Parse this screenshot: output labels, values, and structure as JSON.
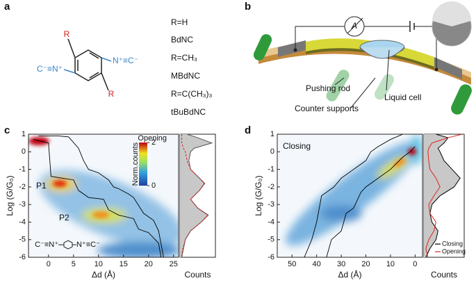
{
  "panel_letters": [
    "a",
    "b",
    "c",
    "d"
  ],
  "panel_a": {
    "left_group": "C⁻≡N⁺",
    "right_group": "N⁺≡C⁻",
    "substituent_top": "R",
    "substituent_bottom": "R",
    "labels": [
      "R=H",
      "BdNC",
      "R=CH₃",
      "MBdNC",
      "R=C(CH₃)₃",
      "tBuBdNC"
    ]
  },
  "panel_b": {
    "meter": "A",
    "pushing_rod": "Pushing rod",
    "liquid_cell": "Liquid cell",
    "counter_supports": "Counter supports"
  },
  "chart_data": [
    {
      "type": "heatmap",
      "xlabel": "Δd (Å)",
      "ylabel": "Log (G/G₀)",
      "xlim": [
        -4,
        26
      ],
      "ylim": [
        -6,
        1
      ],
      "xticks": [
        0,
        5,
        10,
        15,
        20,
        25
      ],
      "yticks": [
        -6,
        -5,
        -4,
        -3,
        -2,
        -1,
        0,
        1
      ],
      "colorbar": {
        "title": "Opening",
        "label": "Norm.counts",
        "ticks": [
          0,
          2
        ]
      },
      "annotations": [
        "P1",
        "P2",
        "C⁻≡N⁺",
        "N⁺≡C⁻"
      ],
      "traces": [
        {
          "color": "#000000",
          "x": [
            -2,
            2,
            4,
            6,
            7,
            8,
            10,
            12,
            13,
            14,
            16,
            17,
            19,
            20,
            21,
            22,
            23
          ],
          "y": [
            0.9,
            0.9,
            0.85,
            0.2,
            -0.5,
            -1,
            -1.2,
            -1.6,
            -2,
            -2.1,
            -2.4,
            -2.6,
            -3.5,
            -3.7,
            -3.9,
            -4.5,
            -6
          ]
        },
        {
          "color": "#000000",
          "x": [
            -3,
            0,
            0.5,
            5,
            6,
            8,
            11,
            12,
            14,
            17,
            18,
            20,
            22,
            22.5
          ],
          "y": [
            0.7,
            0.5,
            -1.4,
            -1.6,
            -2.2,
            -2.6,
            -2.7,
            -3.3,
            -3.6,
            -3.8,
            -4.4,
            -4.6,
            -5.2,
            -6
          ]
        }
      ],
      "histogram": {
        "xlabel": "Counts",
        "xlim": [
          0,
          1
        ],
        "levels": [
          1,
          0.8,
          0.5,
          0.2,
          0,
          -0.5,
          -1,
          -1.5,
          -1.8,
          -2.2,
          -2.7,
          -3.2,
          -3.6,
          -4,
          -4.5,
          -5,
          -5.5,
          -6
        ],
        "series": [
          {
            "color": "#555555",
            "fill": "#c8c8c8",
            "style": "area",
            "values": [
              0.2,
              0.5,
              0.9,
              0.4,
              0.3,
              0.25,
              0.3,
              0.55,
              0.7,
              0.55,
              0.3,
              0.5,
              0.8,
              0.6,
              0.3,
              0.15,
              0.1,
              0.05
            ]
          },
          {
            "color": "#e0201b",
            "style": "dashed",
            "values": [
              0.05,
              0.05,
              0.05,
              0.1,
              0.15,
              0.2,
              0.3,
              0.55,
              0.68,
              0.55,
              0.3,
              0.5,
              0.78,
              0.6,
              0.3,
              0.15,
              0.08,
              0.04
            ]
          }
        ]
      }
    },
    {
      "type": "heatmap",
      "xlabel": "Δd (Å)",
      "ylabel": "Log (G/G₀)",
      "xlim": [
        56,
        -3
      ],
      "ylim": [
        -6,
        1
      ],
      "xticks": [
        50,
        40,
        30,
        20,
        10,
        0
      ],
      "yticks": [
        -6,
        -5,
        -4,
        -3,
        -2,
        -1,
        0,
        1
      ],
      "annotations": [
        "Closing"
      ],
      "traces": [
        {
          "color": "#000000",
          "x": [
            45,
            42,
            40,
            38,
            33,
            30,
            25,
            20,
            18,
            15,
            10,
            5
          ],
          "y": [
            -6,
            -5,
            -4,
            -2.5,
            -2,
            -1.5,
            -1,
            -0.5,
            0,
            0.3,
            0.7,
            1
          ]
        },
        {
          "color": "#000000",
          "x": [
            36,
            34,
            30,
            28,
            25,
            22,
            20,
            15,
            10,
            5,
            2,
            0
          ],
          "y": [
            -6,
            -5,
            -4.5,
            -3.5,
            -3.2,
            -2.3,
            -2,
            -1.5,
            -1,
            -0.3,
            0,
            0.3
          ]
        }
      ],
      "histogram": {
        "xlabel": "Counts",
        "xlim": [
          0,
          1
        ],
        "legend": "lower right",
        "levels": [
          1,
          0.8,
          0.5,
          0.2,
          0,
          -0.5,
          -1,
          -1.5,
          -2,
          -2.5,
          -3,
          -3.5,
          -4,
          -4.5,
          -5,
          -5.5,
          -6
        ],
        "series": [
          {
            "name": "Closing",
            "color": "#000000",
            "fill": "#c8c8c8",
            "style": "area",
            "values": [
              0.3,
              0.6,
              0.5,
              0.35,
              0.4,
              0.5,
              0.7,
              0.9,
              0.75,
              0.4,
              0.2,
              0.15,
              0.2,
              0.35,
              0.3,
              0.15,
              0.05
            ]
          },
          {
            "name": "Opening",
            "color": "#e0201b",
            "style": "line",
            "values": [
              0.95,
              0.6,
              0.2,
              0.12,
              0.1,
              0.12,
              0.15,
              0.3,
              0.4,
              0.25,
              0.12,
              0.15,
              0.3,
              0.25,
              0.12,
              0.05,
              0.1
            ]
          }
        ]
      }
    }
  ]
}
